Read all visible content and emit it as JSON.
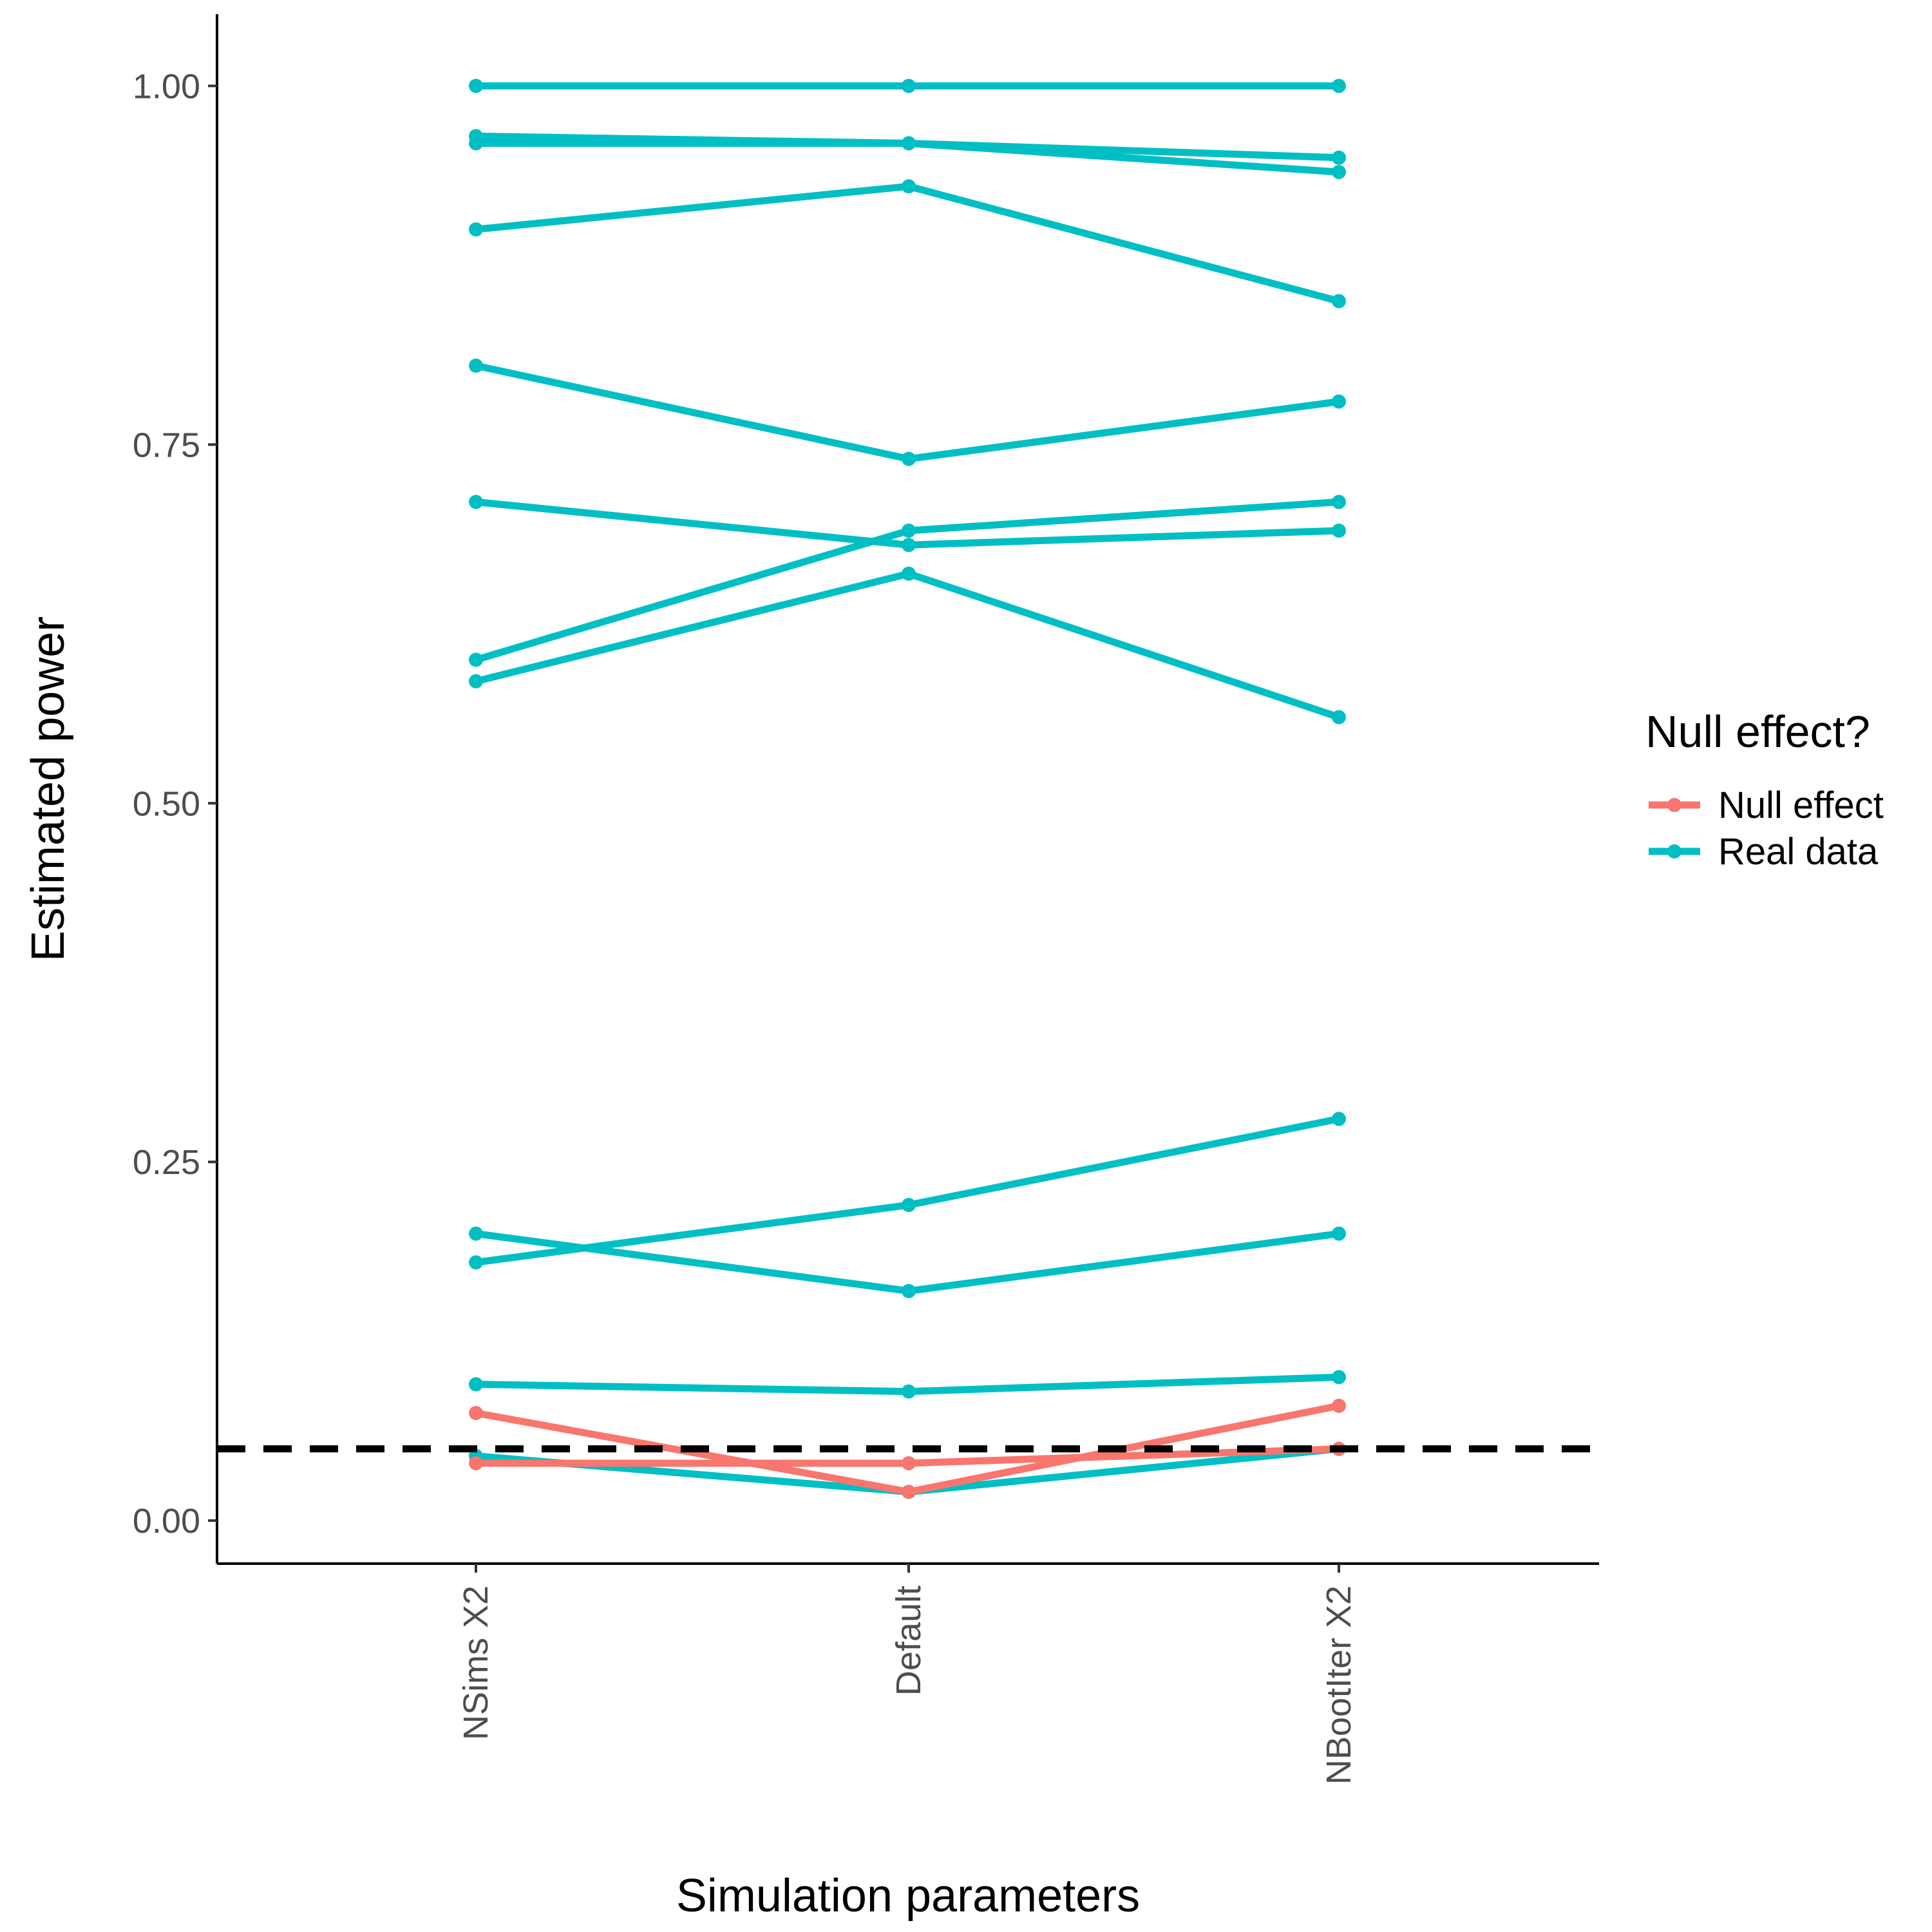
{
  "chart_data": {
    "type": "line",
    "xlabel": "Simulation parameters",
    "ylabel": "Estimated power",
    "categories": [
      "NSims X2",
      "Default",
      "NBootIter X2"
    ],
    "ylim": [
      -0.03,
      1.05
    ],
    "yticks": [
      0.0,
      0.25,
      0.5,
      0.75,
      1.0
    ],
    "ytick_labels": [
      "0.00",
      "0.25",
      "0.50",
      "0.75",
      "1.00"
    ],
    "grid": false,
    "reference_line": {
      "y": 0.05,
      "style": "dashed",
      "color": "#000000"
    },
    "legend": {
      "title": "Null effect?",
      "position": "right",
      "entries": [
        {
          "label": "Null effect",
          "color": "#F8766D"
        },
        {
          "label": "Real data",
          "color": "#00BFC4"
        }
      ]
    },
    "series": [
      {
        "group": "Real data",
        "color": "#00BFC4",
        "values": [
          1.0,
          1.0,
          1.0
        ]
      },
      {
        "group": "Real data",
        "color": "#00BFC4",
        "values": [
          0.965,
          0.96,
          0.95
        ]
      },
      {
        "group": "Real data",
        "color": "#00BFC4",
        "values": [
          0.96,
          0.96,
          0.94
        ]
      },
      {
        "group": "Real data",
        "color": "#00BFC4",
        "values": [
          0.9,
          0.93,
          0.85
        ]
      },
      {
        "group": "Real data",
        "color": "#00BFC4",
        "values": [
          0.805,
          0.74,
          0.78
        ]
      },
      {
        "group": "Real data",
        "color": "#00BFC4",
        "values": [
          0.71,
          0.68,
          0.69
        ]
      },
      {
        "group": "Real data",
        "color": "#00BFC4",
        "values": [
          0.6,
          0.69,
          0.71
        ]
      },
      {
        "group": "Real data",
        "color": "#00BFC4",
        "values": [
          0.585,
          0.66,
          0.56
        ]
      },
      {
        "group": "Real data",
        "color": "#00BFC4",
        "values": [
          0.18,
          0.22,
          0.28
        ]
      },
      {
        "group": "Real data",
        "color": "#00BFC4",
        "values": [
          0.2,
          0.16,
          0.2
        ]
      },
      {
        "group": "Real data",
        "color": "#00BFC4",
        "values": [
          0.095,
          0.09,
          0.1
        ]
      },
      {
        "group": "Real data",
        "color": "#00BFC4",
        "values": [
          0.045,
          0.02,
          0.05
        ]
      },
      {
        "group": "Null effect",
        "color": "#F8766D",
        "values": [
          0.075,
          0.02,
          0.08
        ]
      },
      {
        "group": "Null effect",
        "color": "#F8766D",
        "values": [
          0.04,
          0.04,
          0.05
        ]
      }
    ]
  }
}
